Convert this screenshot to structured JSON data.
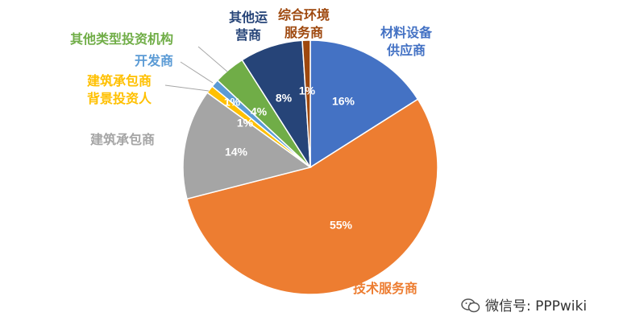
{
  "chart_data": {
    "type": "pie",
    "start_angle_deg": 0,
    "direction": "clockwise",
    "slices": [
      {
        "name": "材料设备供应商",
        "label_lines": [
          "材料设备",
          "供应商"
        ],
        "value": 16,
        "label": "16%",
        "color": "#4472C4"
      },
      {
        "name": "技术服务商",
        "label_lines": [
          "技术服务商"
        ],
        "value": 55,
        "label": "55%",
        "color": "#ED7D31"
      },
      {
        "name": "建筑承包商",
        "label_lines": [
          "建筑承包商"
        ],
        "value": 14,
        "label": "14%",
        "color": "#A5A5A5"
      },
      {
        "name": "建筑承包商背景投资人",
        "label_lines": [
          "建筑承包商",
          "背景投资人"
        ],
        "value": 1,
        "label": "1%",
        "color": "#FFC000"
      },
      {
        "name": "开发商",
        "label_lines": [
          "开发商"
        ],
        "value": 1,
        "label": "1%",
        "color": "#5B9BD5"
      },
      {
        "name": "其他类型投资机构",
        "label_lines": [
          "其他类型投资机构"
        ],
        "value": 4,
        "label": "4%",
        "color": "#70AD47"
      },
      {
        "name": "其他运营商",
        "label_lines": [
          "其他运",
          "营商"
        ],
        "value": 8,
        "label": "8%",
        "color": "#264478"
      },
      {
        "name": "综合环境服务商",
        "label_lines": [
          "综合环境",
          "服务商"
        ],
        "value": 1,
        "label": "1%",
        "color": "#9E480E"
      }
    ]
  },
  "label_colors": {
    "材料设备供应商": "#4472C4",
    "技术服务商": "#ED7D31",
    "建筑承包商": "#A5A5A5",
    "建筑承包商背景投资人": "#FFC000",
    "开发商": "#5B9BD5",
    "其他类型投资机构": "#70AD47",
    "其他运营商": "#264478",
    "综合环境服务商": "#9E480E"
  },
  "watermark": {
    "text": "微信号: PPPwiki",
    "icon": "wechat-icon"
  }
}
